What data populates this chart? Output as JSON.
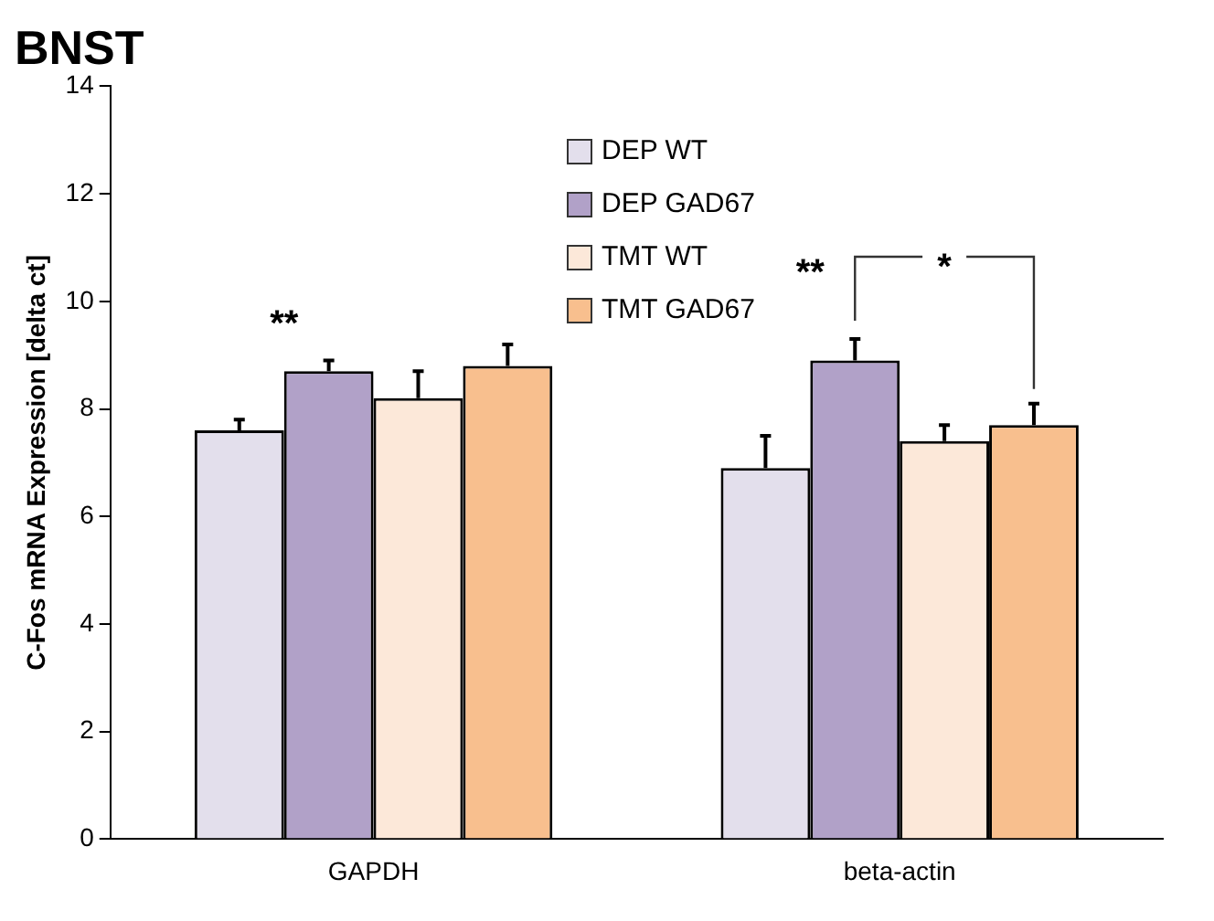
{
  "chart_data": {
    "type": "bar",
    "title": "BNST",
    "ylabel": "C-Fos mRNA Expression [delta ct]",
    "categories": [
      "GAPDH",
      "beta-actin"
    ],
    "series": [
      {
        "name": "DEP WT",
        "color": "#e3dfec",
        "values": [
          7.6,
          6.9
        ],
        "errors": [
          [
            7.6,
            7.8
          ],
          [
            6.9,
            7.5
          ]
        ]
      },
      {
        "name": "DEP GAD67",
        "color": "#b1a1c8",
        "values": [
          8.7,
          8.9
        ],
        "errors": [
          [
            8.7,
            8.9
          ],
          [
            8.9,
            9.3
          ]
        ]
      },
      {
        "name": "TMT WT",
        "color": "#fce8d9",
        "values": [
          8.2,
          7.4
        ],
        "errors": [
          [
            8.2,
            8.7
          ],
          [
            7.4,
            7.7
          ]
        ]
      },
      {
        "name": "TMT GAD67",
        "color": "#f8bf8e",
        "values": [
          8.8,
          7.7
        ],
        "errors": [
          [
            8.8,
            9.2
          ],
          [
            7.7,
            8.1
          ]
        ]
      }
    ],
    "annotations": [
      "**",
      "**",
      "*"
    ],
    "ylim": [
      0,
      14
    ],
    "yticks": [
      0,
      2,
      4,
      6,
      8,
      10,
      12,
      14
    ],
    "grid": false,
    "legend": "top"
  }
}
